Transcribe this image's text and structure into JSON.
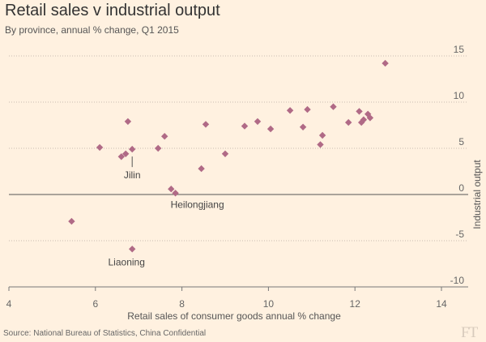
{
  "title": "Retail sales v industrial output",
  "subtitle": "By province, annual % change, Q1 2015",
  "source": "Source: National Bureau of Statistics, China Confidential",
  "logo_text": "FT",
  "colors": {
    "background": "#FFF1E0",
    "marker": "#B06A86",
    "grid": "#C8BCB0",
    "zero_line": "#555555",
    "text": "#333333"
  },
  "chart_data": {
    "type": "scatter",
    "title": "Retail sales v industrial output",
    "subtitle": "By province, annual % change, Q1 2015",
    "xlabel": "Retail sales of consumer goods annual % change",
    "ylabel": "Industrial output",
    "xlim": [
      4,
      14
    ],
    "ylim": [
      -10,
      15
    ],
    "xticks": [
      "4",
      "6",
      "8",
      "10",
      "12",
      "14"
    ],
    "yticks": [
      "15",
      "10",
      "5",
      "0",
      "-5",
      "-10"
    ],
    "ytick_values": [
      15,
      10,
      5,
      0,
      -5,
      -10
    ],
    "xtick_values": [
      4,
      6,
      8,
      10,
      12,
      14
    ],
    "grid": "horizontal dotted",
    "y_axis_position": "right",
    "marker": "diamond",
    "points": [
      {
        "x": 12.7,
        "y": 14.2
      },
      {
        "x": 5.45,
        "y": -2.9
      },
      {
        "x": 6.1,
        "y": 5.1
      },
      {
        "x": 6.6,
        "y": 4.1
      },
      {
        "x": 6.7,
        "y": 4.4
      },
      {
        "x": 6.85,
        "y": 4.9
      },
      {
        "x": 6.75,
        "y": 7.9
      },
      {
        "x": 6.85,
        "y": -5.9
      },
      {
        "x": 7.45,
        "y": 5.0
      },
      {
        "x": 7.6,
        "y": 6.3
      },
      {
        "x": 7.75,
        "y": 0.6
      },
      {
        "x": 7.85,
        "y": 0.15
      },
      {
        "x": 8.45,
        "y": 2.8
      },
      {
        "x": 8.55,
        "y": 7.6
      },
      {
        "x": 9.0,
        "y": 4.4
      },
      {
        "x": 9.45,
        "y": 7.4
      },
      {
        "x": 9.75,
        "y": 7.9
      },
      {
        "x": 10.05,
        "y": 7.1
      },
      {
        "x": 10.5,
        "y": 9.1
      },
      {
        "x": 10.8,
        "y": 7.3
      },
      {
        "x": 10.9,
        "y": 9.2
      },
      {
        "x": 11.2,
        "y": 5.4
      },
      {
        "x": 11.25,
        "y": 6.4
      },
      {
        "x": 11.5,
        "y": 9.5
      },
      {
        "x": 11.85,
        "y": 7.8
      },
      {
        "x": 12.1,
        "y": 9.0
      },
      {
        "x": 12.15,
        "y": 7.8
      },
      {
        "x": 12.2,
        "y": 8.1
      },
      {
        "x": 12.3,
        "y": 8.7
      },
      {
        "x": 12.35,
        "y": 8.3
      }
    ],
    "annotations": [
      {
        "text": "Jilin",
        "point_index": 5,
        "anchor": "middle"
      },
      {
        "text": "Heilongjiang",
        "point_index": 11,
        "anchor": "start"
      },
      {
        "text": "Liaoning",
        "point_index": 7,
        "anchor": "middle"
      }
    ]
  }
}
